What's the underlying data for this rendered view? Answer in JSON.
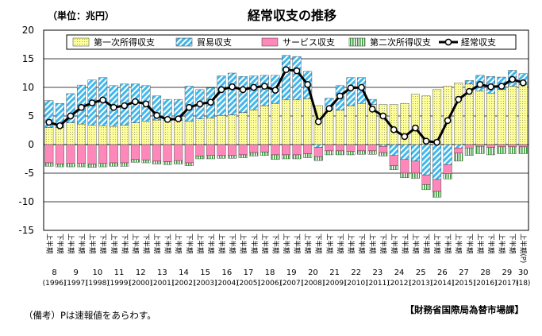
{
  "chart_data": {
    "type": "bar",
    "title": "経常収支の推移",
    "unit_label": "（単位：兆円）",
    "note": "（備考）Pは速報値をあらわす。",
    "source": "【財務省国際局為替市場課】",
    "ylim": [
      -15,
      20
    ],
    "yticks": [
      20,
      15,
      10,
      5,
      0,
      -5,
      -10,
      -15
    ],
    "grid": true,
    "legend_position": "top",
    "categories": [
      "上半期",
      "下半期",
      "上半期",
      "下半期",
      "上半期",
      "下半期",
      "上半期",
      "下半期",
      "上半期",
      "下半期",
      "上半期",
      "下半期",
      "上半期",
      "下半期",
      "上半期",
      "下半期",
      "上半期",
      "下半期",
      "上半期",
      "下半期",
      "上半期",
      "下半期",
      "上半期",
      "下半期",
      "上半期",
      "下半期",
      "上半期",
      "下半期",
      "上半期",
      "下半期",
      "上半期",
      "下半期",
      "上半期",
      "下半期",
      "上半期",
      "下半期",
      "上半期",
      "下半期",
      "上半期",
      "下半期",
      "上半期",
      "下半期",
      "上半期",
      "下半期",
      "上半期(P)"
    ],
    "year_groups": [
      {
        "label": "8",
        "sub": "(1996)",
        "start": 0,
        "count": 2
      },
      {
        "label": "9",
        "sub": "(1997)",
        "start": 2,
        "count": 2
      },
      {
        "label": "10",
        "sub": "(1998)",
        "start": 4,
        "count": 2
      },
      {
        "label": "11",
        "sub": "(1999)",
        "start": 6,
        "count": 2
      },
      {
        "label": "12",
        "sub": "(2000)",
        "start": 8,
        "count": 2
      },
      {
        "label": "13",
        "sub": "(2001)",
        "start": 10,
        "count": 2
      },
      {
        "label": "14",
        "sub": "(2002)",
        "start": 12,
        "count": 2
      },
      {
        "label": "15",
        "sub": "(2003)",
        "start": 14,
        "count": 2
      },
      {
        "label": "16",
        "sub": "(2004)",
        "start": 16,
        "count": 2
      },
      {
        "label": "17",
        "sub": "(2005)",
        "start": 18,
        "count": 2
      },
      {
        "label": "18",
        "sub": "(2006)",
        "start": 20,
        "count": 2
      },
      {
        "label": "19",
        "sub": "(2007)",
        "start": 22,
        "count": 2
      },
      {
        "label": "20",
        "sub": "(2008)",
        "start": 24,
        "count": 2
      },
      {
        "label": "21",
        "sub": "(2009)",
        "start": 26,
        "count": 2
      },
      {
        "label": "22",
        "sub": "(2010)",
        "start": 28,
        "count": 2
      },
      {
        "label": "23",
        "sub": "(2011)",
        "start": 30,
        "count": 2
      },
      {
        "label": "24",
        "sub": "(2012)",
        "start": 32,
        "count": 2
      },
      {
        "label": "25",
        "sub": "(2013)",
        "start": 34,
        "count": 2
      },
      {
        "label": "26",
        "sub": "(2014)",
        "start": 36,
        "count": 2
      },
      {
        "label": "27",
        "sub": "(2015)",
        "start": 38,
        "count": 2
      },
      {
        "label": "28",
        "sub": "(2016)",
        "start": 40,
        "count": 2
      },
      {
        "label": "29",
        "sub": "(2017)",
        "start": 42,
        "count": 2
      },
      {
        "label": "30",
        "sub": "(18)",
        "start": 44,
        "count": 1
      }
    ],
    "series": [
      {
        "name": "第一次所得収支",
        "kind": "bar",
        "color": "#ffff99",
        "pattern": "dots",
        "values": [
          3.0,
          3.0,
          3.8,
          3.6,
          3.4,
          3.3,
          3.2,
          3.4,
          3.8,
          4.1,
          4.3,
          4.2,
          4.2,
          4.1,
          4.5,
          4.6,
          5.1,
          5.2,
          5.6,
          6.1,
          6.8,
          7.2,
          7.8,
          7.8,
          8.0,
          6.8,
          6.2,
          6.0,
          6.8,
          7.2,
          7.0,
          7.0,
          7.0,
          7.2,
          8.8,
          8.5,
          9.6,
          10.2,
          10.8,
          10.6,
          9.4,
          9.0,
          9.6,
          10.2,
          10.5
        ]
      },
      {
        "name": "貿易収支",
        "kind": "bar",
        "color": "#40b8ec",
        "pattern": "stripes",
        "values": [
          4.7,
          4.2,
          5.1,
          6.8,
          7.9,
          8.4,
          7.1,
          7.2,
          6.8,
          6.2,
          4.2,
          3.7,
          3.7,
          6.1,
          5.1,
          5.3,
          6.9,
          7.3,
          6.3,
          5.9,
          5.3,
          4.9,
          7.8,
          7.6,
          4.8,
          -0.5,
          1.9,
          4.3,
          4.9,
          4.5,
          0.9,
          -0.3,
          -1.9,
          -2.6,
          -2.9,
          -5.3,
          -6.1,
          -3.5,
          -0.6,
          0.6,
          2.7,
          2.9,
          2.2,
          2.8,
          1.9
        ]
      },
      {
        "name": "サービス収支",
        "kind": "bar",
        "color": "#ff88bb",
        "pattern": "solid",
        "values": [
          -3.2,
          -3.4,
          -3.3,
          -3.3,
          -3.4,
          -3.3,
          -3.2,
          -3.2,
          -2.6,
          -2.7,
          -2.9,
          -3.0,
          -2.8,
          -3.2,
          -2.0,
          -1.9,
          -1.9,
          -1.9,
          -1.8,
          -1.4,
          -1.3,
          -1.8,
          -1.8,
          -1.8,
          -1.6,
          -1.6,
          -1.1,
          -1.1,
          -1.2,
          -1.1,
          -1.1,
          -1.1,
          -1.8,
          -2.4,
          -2.1,
          -1.7,
          -2.1,
          -1.6,
          -0.9,
          -0.6,
          -0.3,
          -0.5,
          -0.4,
          -0.4,
          -0.4
        ]
      },
      {
        "name": "第二次所得収支",
        "kind": "bar",
        "color": "#88cc55",
        "pattern": "vstripes",
        "values": [
          -0.6,
          -0.5,
          -0.6,
          -0.6,
          -0.6,
          -0.6,
          -0.6,
          -0.6,
          -0.5,
          -0.5,
          -0.5,
          -0.5,
          -0.6,
          -0.5,
          -0.5,
          -0.6,
          -0.5,
          -0.5,
          -0.5,
          -0.6,
          -0.6,
          -0.8,
          -0.7,
          -0.7,
          -0.7,
          -0.7,
          -0.7,
          -0.7,
          -0.6,
          -0.6,
          -0.6,
          -0.6,
          -0.7,
          -0.8,
          -0.9,
          -0.9,
          -1.0,
          -0.9,
          -1.4,
          -1.3,
          -1.3,
          -1.3,
          -1.2,
          -1.2,
          -1.2
        ]
      },
      {
        "name": "経常収支",
        "kind": "line",
        "color": "#000000",
        "values": [
          3.9,
          3.3,
          5.0,
          6.5,
          7.3,
          7.8,
          6.5,
          6.8,
          7.5,
          7.1,
          5.1,
          4.4,
          4.5,
          6.5,
          7.1,
          7.4,
          9.6,
          10.1,
          9.6,
          10.0,
          10.2,
          9.5,
          13.1,
          12.9,
          10.5,
          4.0,
          6.3,
          8.5,
          9.9,
          10.0,
          6.2,
          5.0,
          2.6,
          1.4,
          2.9,
          0.6,
          0.4,
          4.2,
          7.9,
          9.3,
          10.5,
          10.1,
          10.2,
          11.4,
          10.8
        ]
      }
    ]
  }
}
